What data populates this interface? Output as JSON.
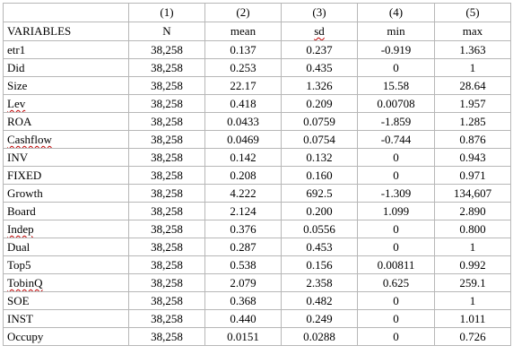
{
  "header": {
    "numbers": [
      "(1)",
      "(2)",
      "(3)",
      "(4)",
      "(5)"
    ],
    "var_label": "VARIABLES",
    "stats": [
      "N",
      "mean",
      "sd",
      "min",
      "max"
    ]
  },
  "rows": [
    {
      "var": "etr1",
      "spell": false,
      "n": "38,258",
      "mean": "0.137",
      "sd": "0.237",
      "min": "-0.919",
      "max": "1.363"
    },
    {
      "var": "Did",
      "spell": false,
      "n": "38,258",
      "mean": "0.253",
      "sd": "0.435",
      "min": "0",
      "max": "1"
    },
    {
      "var": "Size",
      "spell": false,
      "n": "38,258",
      "mean": "22.17",
      "sd": "1.326",
      "min": "15.58",
      "max": "28.64"
    },
    {
      "var": "Lev",
      "spell": true,
      "n": "38,258",
      "mean": "0.418",
      "sd": "0.209",
      "min": "0.00708",
      "max": "1.957"
    },
    {
      "var": "ROA",
      "spell": false,
      "n": "38,258",
      "mean": "0.0433",
      "sd": "0.0759",
      "min": "-1.859",
      "max": "1.285"
    },
    {
      "var": "Cashflow",
      "spell": true,
      "n": "38,258",
      "mean": "0.0469",
      "sd": "0.0754",
      "min": "-0.744",
      "max": "0.876"
    },
    {
      "var": "INV",
      "spell": false,
      "n": "38,258",
      "mean": "0.142",
      "sd": "0.132",
      "min": "0",
      "max": "0.943"
    },
    {
      "var": "FIXED",
      "spell": false,
      "n": "38,258",
      "mean": "0.208",
      "sd": "0.160",
      "min": "0",
      "max": "0.971"
    },
    {
      "var": "Growth",
      "spell": false,
      "n": "38,258",
      "mean": "4.222",
      "sd": "692.5",
      "min": "-1.309",
      "max": "134,607"
    },
    {
      "var": "Board",
      "spell": false,
      "n": "38,258",
      "mean": "2.124",
      "sd": "0.200",
      "min": "1.099",
      "max": "2.890"
    },
    {
      "var": "Indep",
      "spell": true,
      "n": "38,258",
      "mean": "0.376",
      "sd": "0.0556",
      "min": "0",
      "max": "0.800"
    },
    {
      "var": "Dual",
      "spell": false,
      "n": "38,258",
      "mean": "0.287",
      "sd": "0.453",
      "min": "0",
      "max": "1"
    },
    {
      "var": "Top5",
      "spell": false,
      "n": "38,258",
      "mean": "0.538",
      "sd": "0.156",
      "min": "0.00811",
      "max": "0.992"
    },
    {
      "var": "TobinQ",
      "spell": true,
      "n": "38,258",
      "mean": "2.079",
      "sd": "2.358",
      "min": "0.625",
      "max": "259.1"
    },
    {
      "var": "SOE",
      "spell": false,
      "n": "38,258",
      "mean": "0.368",
      "sd": "0.482",
      "min": "0",
      "max": "1"
    },
    {
      "var": "INST",
      "spell": false,
      "n": "38,258",
      "mean": "0.440",
      "sd": "0.249",
      "min": "0",
      "max": "1.011"
    },
    {
      "var": "Occupy",
      "spell": false,
      "n": "38,258",
      "mean": "0.0151",
      "sd": "0.0288",
      "min": "0",
      "max": "0.726"
    }
  ]
}
